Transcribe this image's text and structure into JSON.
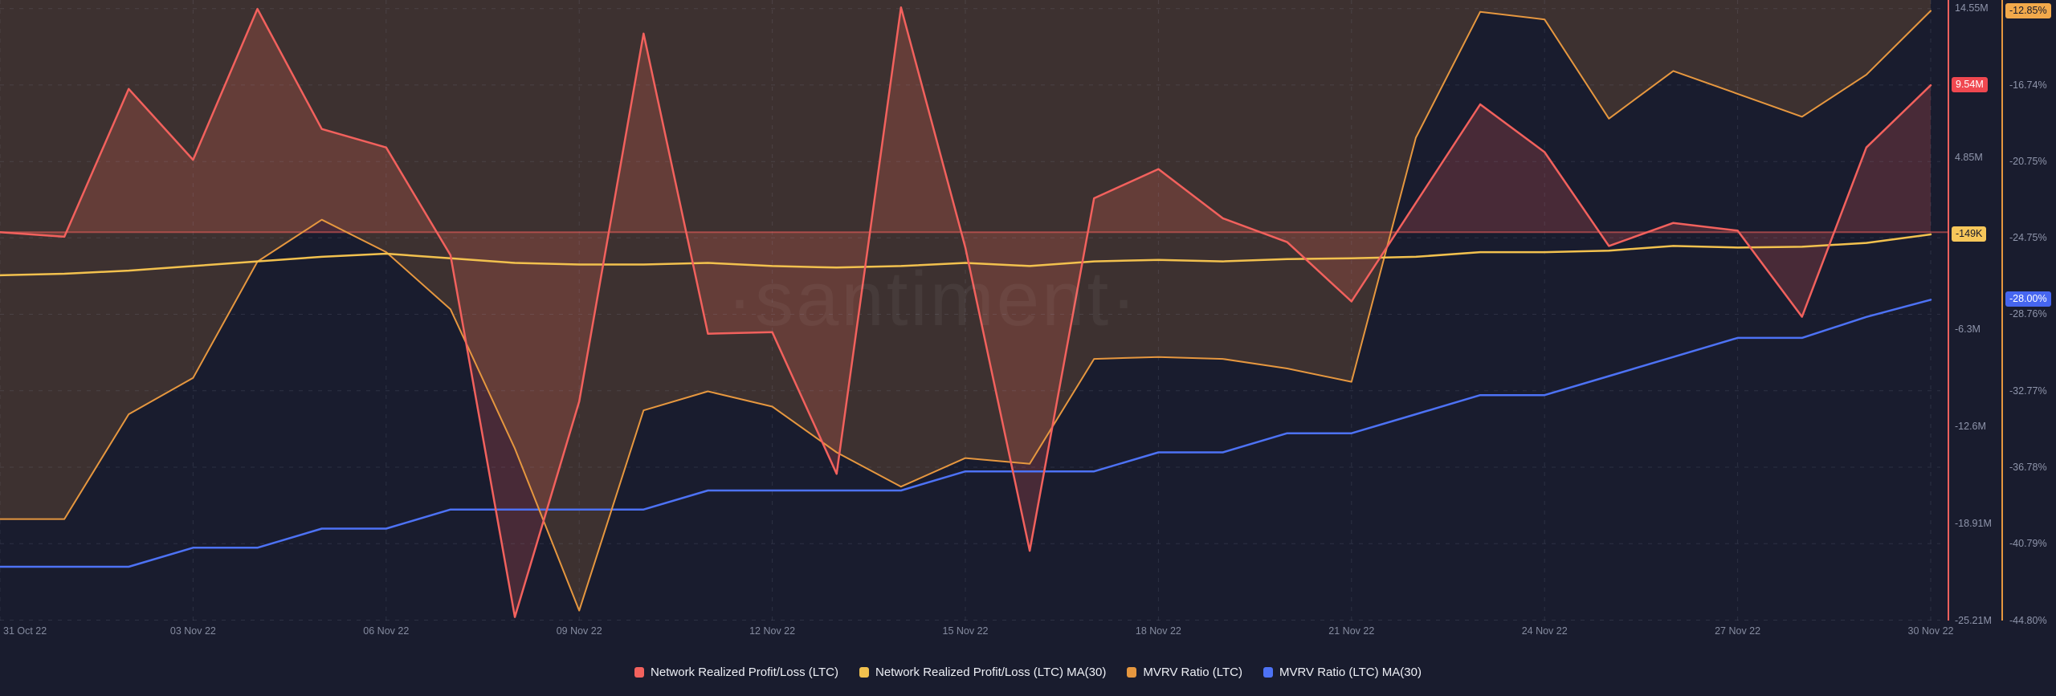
{
  "watermark": "·santiment·",
  "colors": {
    "background": "#191c2e",
    "grid": "rgba(160,170,200,0.14)",
    "realized_pl": "#f2615d",
    "realized_pl_ma30": "#f2c14e",
    "mvrv": "#e6973f",
    "mvrv_ma30": "#4d72f5",
    "realized_pl_fill": "rgba(242,97,93,0.22)",
    "mvrv_fill": "rgba(230,151,63,0.18)",
    "zero_baseline": "rgba(242,97,93,0.55)",
    "axis_text": "#8f95ab"
  },
  "legend": {
    "items": [
      {
        "label": "Network Realized Profit/Loss (LTC)",
        "color": "#f2615d"
      },
      {
        "label": "Network Realized Profit/Loss (LTC) MA(30)",
        "color": "#f2c14e"
      },
      {
        "label": "MVRV Ratio (LTC)",
        "color": "#e6973f"
      },
      {
        "label": "MVRV Ratio (LTC) MA(30)",
        "color": "#4d72f5"
      }
    ]
  },
  "badges": [
    {
      "name": "realized-pl-current",
      "label": "9.54M",
      "axis": "m",
      "value": 9.54,
      "bg": "#f04850",
      "fg": "#ffffff"
    },
    {
      "name": "realized-pl-ma30-current",
      "label": "-149K",
      "axis": "m",
      "value": -0.149,
      "bg": "#f7c75a",
      "fg": "#15182b"
    },
    {
      "name": "mvrv-current",
      "label": "-12.85%",
      "axis": "pct",
      "value": -12.85,
      "bg": "#f2a94b",
      "fg": "#15182b"
    },
    {
      "name": "mvrv-ma30-current",
      "label": "-28.00%",
      "axis": "pct",
      "value": -28.0,
      "bg": "#4666f0",
      "fg": "#ffffff"
    }
  ],
  "chart_data": {
    "type": "line",
    "x_axis": {
      "ticks": [
        {
          "day": 0,
          "label": "31 Oct 22"
        },
        {
          "day": 3,
          "label": "03 Nov 22"
        },
        {
          "day": 6,
          "label": "06 Nov 22"
        },
        {
          "day": 9,
          "label": "09 Nov 22"
        },
        {
          "day": 12,
          "label": "12 Nov 22"
        },
        {
          "day": 15,
          "label": "15 Nov 22"
        },
        {
          "day": 18,
          "label": "18 Nov 22"
        },
        {
          "day": 21,
          "label": "21 Nov 22"
        },
        {
          "day": 24,
          "label": "24 Nov 22"
        },
        {
          "day": 27,
          "label": "27 Nov 22"
        },
        {
          "day": 30,
          "label": "30 Nov 22"
        }
      ],
      "days_total": 30
    },
    "m_axis": {
      "unit": "M",
      "top_value": 15.08,
      "bottom_value": -25.23,
      "ticks": [
        {
          "label": "14.55M",
          "value": 14.55
        },
        {
          "label": "4.85M",
          "value": 4.85
        },
        {
          "label": "-6.3M",
          "value": -6.3
        },
        {
          "label": "-12.6M",
          "value": -12.6
        },
        {
          "label": "-18.91M",
          "value": -18.91
        },
        {
          "label": "-25.21M",
          "value": -25.21
        }
      ]
    },
    "pct_axis": {
      "unit": "%",
      "top_value": -12.28,
      "bottom_value": -44.82,
      "gridline_values": [
        -12.73,
        -16.74,
        -20.75,
        -24.75,
        -28.76,
        -32.77,
        -36.78,
        -40.79,
        -44.8
      ],
      "ticks": [
        {
          "label": "-16.74%",
          "value": -16.74
        },
        {
          "label": "-20.75%",
          "value": -20.75
        },
        {
          "label": "-24.75%",
          "value": -24.75
        },
        {
          "label": "-28.76%",
          "value": -28.76
        },
        {
          "label": "-32.77%",
          "value": -32.77
        },
        {
          "label": "-36.78%",
          "value": -36.78
        },
        {
          "label": "-40.79%",
          "value": -40.79
        },
        {
          "label": "-44.80%",
          "value": -44.8
        }
      ]
    },
    "series": [
      {
        "name": "Network Realized Profit/Loss (LTC)",
        "axis": "m",
        "color": "#f2615d",
        "fill_to_zero": true,
        "values": [
          0.0,
          -0.3,
          9.3,
          4.7,
          14.5,
          6.7,
          5.5,
          -1.5,
          -25.0,
          -11.0,
          12.9,
          -6.6,
          -6.5,
          -15.7,
          14.6,
          -1.0,
          -20.7,
          2.2,
          4.1,
          0.9,
          -0.65,
          -4.5,
          1.9,
          8.3,
          5.2,
          -0.9,
          0.6,
          0.1,
          -5.5,
          5.5,
          9.54
        ]
      },
      {
        "name": "Network Realized Profit/Loss (LTC) MA(30)",
        "axis": "m",
        "color": "#f2c14e",
        "values": [
          -2.8,
          -2.7,
          -2.5,
          -2.2,
          -1.9,
          -1.6,
          -1.4,
          -1.7,
          -2.0,
          -2.1,
          -2.1,
          -2.0,
          -2.2,
          -2.3,
          -2.2,
          -2.0,
          -2.2,
          -1.9,
          -1.8,
          -1.9,
          -1.75,
          -1.7,
          -1.6,
          -1.3,
          -1.3,
          -1.2,
          -0.9,
          -1.0,
          -0.95,
          -0.7,
          -0.149
        ]
      },
      {
        "name": "MVRV Ratio (LTC)",
        "axis": "pct",
        "color": "#e6973f",
        "fill_to_top": true,
        "values": [
          -39.5,
          -39.5,
          -34.0,
          -32.1,
          -26.0,
          -23.8,
          -25.5,
          -28.5,
          -35.8,
          -44.3,
          -33.8,
          -32.8,
          -33.6,
          -36.0,
          -37.8,
          -36.3,
          -36.6,
          -31.1,
          -31.0,
          -31.1,
          -31.6,
          -32.3,
          -19.5,
          -12.9,
          -13.3,
          -18.5,
          -16.0,
          -17.2,
          -18.4,
          -16.2,
          -12.85
        ]
      },
      {
        "name": "MVRV Ratio (LTC) MA(30)",
        "axis": "pct",
        "color": "#4d72f5",
        "values": [
          -42.0,
          -42.0,
          -42.0,
          -41.0,
          -41.0,
          -40.0,
          -40.0,
          -39.0,
          -39.0,
          -39.0,
          -39.0,
          -38.0,
          -38.0,
          -38.0,
          -38.0,
          -37.0,
          -37.0,
          -37.0,
          -36.0,
          -36.0,
          -35.0,
          -35.0,
          -34.0,
          -33.0,
          -33.0,
          -32.0,
          -31.0,
          -30.0,
          -30.0,
          -28.9,
          -28.0
        ]
      }
    ]
  }
}
